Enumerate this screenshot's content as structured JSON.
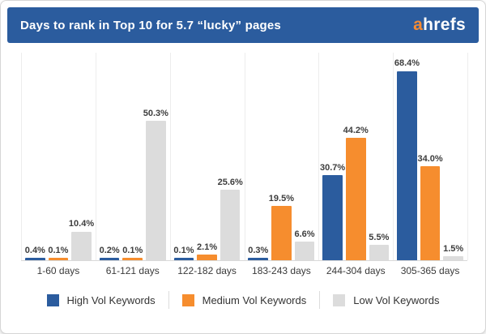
{
  "header": {
    "logo": {
      "prefix": "a",
      "rest": "hrefs"
    }
  },
  "chart_data": {
    "type": "bar",
    "title": "Days to rank in Top 10 for 5.7 “lucky” pages",
    "categories": [
      "1-60 days",
      "61-121 days",
      "122-182 days",
      "183-243 days",
      "244-304 days",
      "305-365 days"
    ],
    "series": [
      {
        "name": "High Vol Keywords",
        "color": "#2b5c9e",
        "values": [
          0.4,
          0.2,
          0.1,
          0.3,
          30.7,
          68.4
        ]
      },
      {
        "name": "Medium Vol Keywords",
        "color": "#f68d2e",
        "values": [
          0.1,
          0.1,
          2.1,
          19.5,
          44.2,
          34.0
        ]
      },
      {
        "name": "Low Vol Keywords",
        "color": "#dcdcdc",
        "values": [
          10.4,
          50.3,
          25.6,
          6.6,
          5.5,
          1.5
        ]
      }
    ],
    "value_labels": [
      [
        "0.4%",
        "0.2%",
        "0.1%",
        "0.3%",
        "30.7%",
        "68.4%"
      ],
      [
        "0.1%",
        "0.1%",
        "2.1%",
        "19.5%",
        "44.2%",
        "34.0%"
      ],
      [
        "10.4%",
        "50.3%",
        "25.6%",
        "6.6%",
        "5.5%",
        "1.5%"
      ]
    ],
    "xlabel": "",
    "ylabel": "",
    "ylim": [
      0,
      75
    ],
    "grid": "vertical-group-separators",
    "legend_position": "bottom"
  },
  "colors": {
    "header_background": "#2b5c9e",
    "header_text": "#ffffff",
    "logo_accent": "#f68b33",
    "value_label_text": "#3d3d3d",
    "axis_label_text": "#3a3a3a",
    "gridline": "#ededed",
    "baseline": "#d9d9d9",
    "legend_divider": "#dcdcdc",
    "card_border": "#d6d6d6"
  }
}
